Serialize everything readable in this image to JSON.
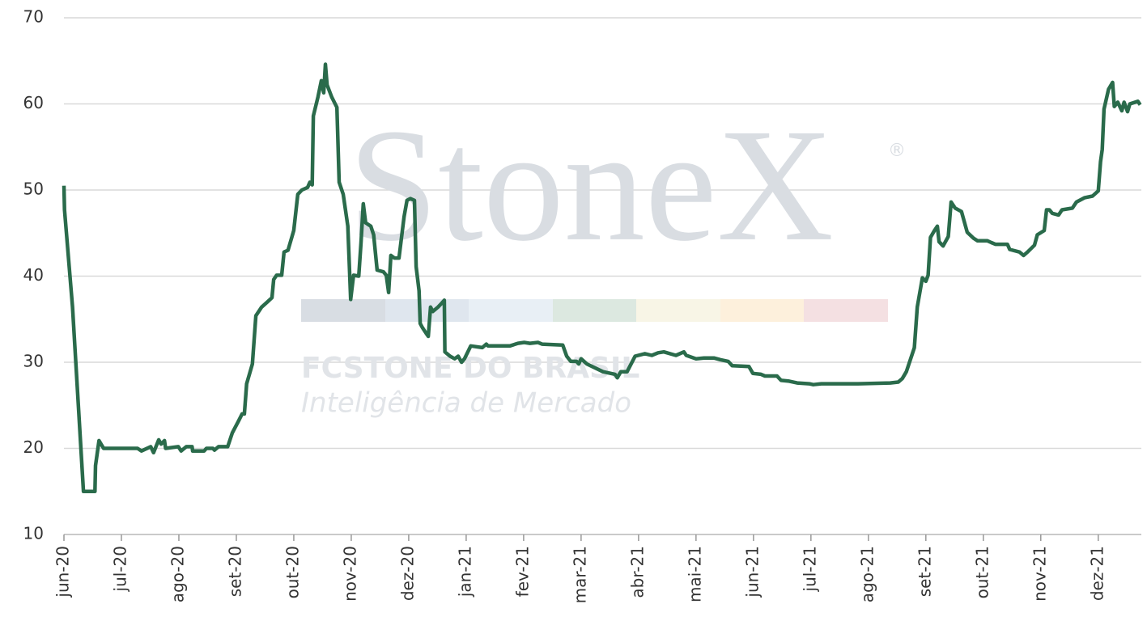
{
  "chart_data": {
    "type": "line",
    "watermark": {
      "logo": "StoneX",
      "mark": "®",
      "company": "FCSTONE DO BRASIL",
      "tagline": "Inteligência de Mercado"
    },
    "xlim": [
      0,
      18.75
    ],
    "xticks": [
      {
        "value": 0,
        "label": "jun-20"
      },
      {
        "value": 1,
        "label": "jul-20"
      },
      {
        "value": 2,
        "label": "ago-20"
      },
      {
        "value": 3,
        "label": "set-20"
      },
      {
        "value": 4,
        "label": "out-20"
      },
      {
        "value": 5,
        "label": "nov-20"
      },
      {
        "value": 6,
        "label": "dez-20"
      },
      {
        "value": 7,
        "label": "jan-21"
      },
      {
        "value": 8,
        "label": "fev-21"
      },
      {
        "value": 9,
        "label": "mar-21"
      },
      {
        "value": 10,
        "label": "abr-21"
      },
      {
        "value": 11,
        "label": "mai-21"
      },
      {
        "value": 12,
        "label": "jun-21"
      },
      {
        "value": 13,
        "label": "jul-21"
      },
      {
        "value": 14,
        "label": "ago-21"
      },
      {
        "value": 15,
        "label": "set-21"
      },
      {
        "value": 16,
        "label": "out-21"
      },
      {
        "value": 17,
        "label": "nov-21"
      },
      {
        "value": 18,
        "label": "dez-21"
      }
    ],
    "ylim": [
      10,
      70
    ],
    "yticks": [
      10,
      20,
      30,
      40,
      50,
      60,
      70
    ],
    "grid": true,
    "x": [
      0,
      0.01,
      0.15,
      0.34,
      0.54,
      0.55,
      0.61,
      0.69,
      1.28,
      1.35,
      1.51,
      1.56,
      1.65,
      1.69,
      1.75,
      1.77,
      1.99,
      2.04,
      2.13,
      2.23,
      2.24,
      2.44,
      2.48,
      2.59,
      2.62,
      2.69,
      2.85,
      2.93,
      3.04,
      3.1,
      3.14,
      3.18,
      3.28,
      3.34,
      3.44,
      3.54,
      3.62,
      3.65,
      3.7,
      3.79,
      3.83,
      3.9,
      4.0,
      4.07,
      4.14,
      4.24,
      4.28,
      4.32,
      4.34,
      4.42,
      4.48,
      4.52,
      4.55,
      4.58,
      4.66,
      4.75,
      4.79,
      4.86,
      4.94,
      4.99,
      5.04,
      5.13,
      5.17,
      5.21,
      5.25,
      5.34,
      5.39,
      5.45,
      5.56,
      5.61,
      5.65,
      5.69,
      5.75,
      5.83,
      5.92,
      5.97,
      6.03,
      6.1,
      6.13,
      6.18,
      6.2,
      6.24,
      6.3,
      6.34,
      6.38,
      6.42,
      6.51,
      6.58,
      6.62,
      6.63,
      6.72,
      6.8,
      6.86,
      6.92,
      6.97,
      7.08,
      7.28,
      7.35,
      7.38,
      7.76,
      7.9,
      8.01,
      8.11,
      8.25,
      8.32,
      8.68,
      8.75,
      8.82,
      8.92,
      8.96,
      9.0,
      9.1,
      9.38,
      9.59,
      9.63,
      9.69,
      9.8,
      9.94,
      10.11,
      10.23,
      10.34,
      10.44,
      10.65,
      10.79,
      10.83,
      11.0,
      11.14,
      11.31,
      11.42,
      11.56,
      11.63,
      11.92,
      11.99,
      12.13,
      12.2,
      12.41,
      12.48,
      12.62,
      12.76,
      12.97,
      13.04,
      13.18,
      13.54,
      13.82,
      14.38,
      14.52,
      14.59,
      14.66,
      14.75,
      14.8,
      14.85,
      14.94,
      15.0,
      15.04,
      15.08,
      15.15,
      15.2,
      15.23,
      15.3,
      15.39,
      15.44,
      15.51,
      15.62,
      15.72,
      15.83,
      15.9,
      16.07,
      16.14,
      16.21,
      16.42,
      16.46,
      16.63,
      16.7,
      16.77,
      16.89,
      16.94,
      17.06,
      17.1,
      17.15,
      17.2,
      17.31,
      17.37,
      17.55,
      17.62,
      17.76,
      17.9,
      18.0,
      18.04,
      18.07,
      18.1,
      18.18,
      18.25,
      18.28,
      18.34,
      18.41,
      18.45,
      18.51,
      18.55,
      18.69,
      18.73
    ],
    "series": [
      {
        "color": "#2a6b4b",
        "values": [
          50.5,
          47.7,
          36.4,
          15,
          15,
          18,
          20.9,
          20,
          20,
          19.7,
          20.2,
          19.5,
          21,
          20.5,
          20.9,
          20,
          20.2,
          19.7,
          20.2,
          20.2,
          19.7,
          19.7,
          20,
          20,
          19.8,
          20.2,
          20.2,
          21.8,
          23.2,
          24,
          24,
          27.5,
          29.8,
          35.4,
          36.4,
          37,
          37.5,
          39.6,
          40.1,
          40.1,
          42.8,
          43,
          45.3,
          49.5,
          50,
          50.3,
          50.9,
          50.6,
          58.6,
          60.8,
          62.7,
          61.3,
          64.6,
          62.2,
          60.8,
          59.6,
          50.9,
          49.5,
          45.8,
          37.3,
          40.1,
          40,
          43.9,
          48.4,
          46.2,
          45.8,
          44.8,
          40.7,
          40.5,
          40.1,
          38.1,
          42.4,
          42.1,
          42.1,
          46.9,
          48.8,
          49,
          48.8,
          41.1,
          38.3,
          34.5,
          34,
          33.4,
          33,
          36.4,
          35.9,
          36.4,
          36.9,
          37.2,
          31.2,
          30.7,
          30.4,
          30.7,
          30,
          30.4,
          31.9,
          31.7,
          32.1,
          31.9,
          31.9,
          32.2,
          32.3,
          32.2,
          32.3,
          32.1,
          32,
          30.7,
          30.1,
          30.1,
          29.8,
          30.4,
          29.8,
          28.9,
          28.6,
          28.2,
          28.9,
          28.9,
          30.7,
          31,
          30.8,
          31.1,
          31.2,
          30.8,
          31.2,
          30.8,
          30.4,
          30.5,
          30.5,
          30.3,
          30.1,
          29.6,
          29.5,
          28.7,
          28.6,
          28.4,
          28.4,
          27.9,
          27.8,
          27.6,
          27.5,
          27.4,
          27.5,
          27.5,
          27.5,
          27.6,
          27.7,
          28.1,
          28.9,
          30.7,
          31.7,
          36.4,
          39.8,
          39.4,
          40.1,
          44.5,
          45.3,
          45.8,
          44,
          43.5,
          44.6,
          48.6,
          47.9,
          47.5,
          45.1,
          44.4,
          44.1,
          44.1,
          43.9,
          43.7,
          43.7,
          43.1,
          42.8,
          42.4,
          42.8,
          43.6,
          44.8,
          45.3,
          47.7,
          47.7,
          47.3,
          47.1,
          47.7,
          47.9,
          48.6,
          49.1,
          49.3,
          49.9,
          53.3,
          54.7,
          59.4,
          61.7,
          62.5,
          59.7,
          60.2,
          59.2,
          60.2,
          59.1,
          60,
          60.3,
          59.9
        ]
      }
    ]
  }
}
